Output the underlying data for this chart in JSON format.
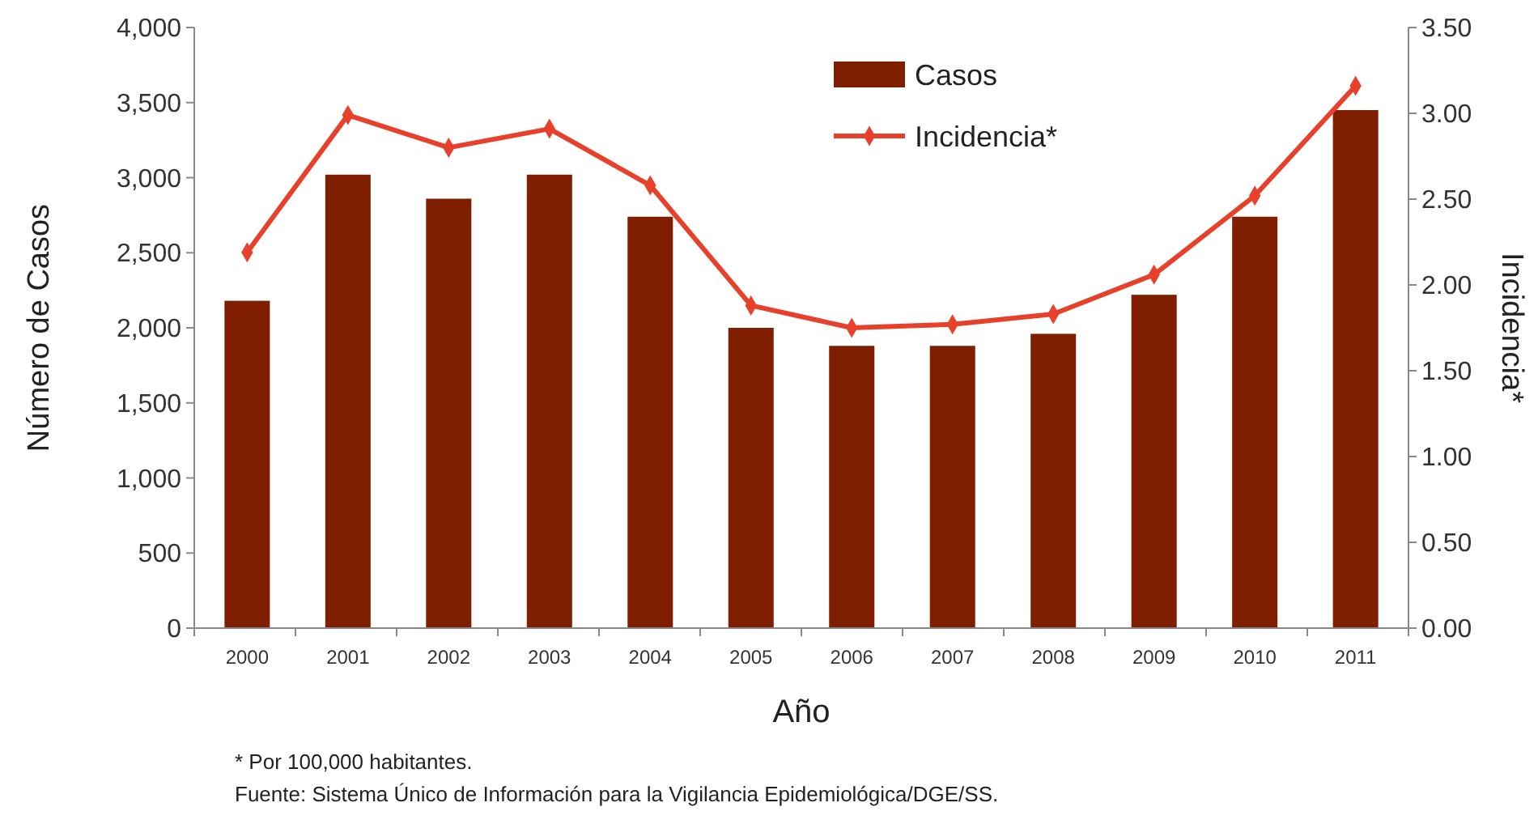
{
  "chart_data": {
    "type": "bar",
    "xlabel": "Año",
    "ylabel": "Número de Casos",
    "y2label": "Incidencia*",
    "categories": [
      "2000",
      "2001",
      "2002",
      "2003",
      "2004",
      "2005",
      "2006",
      "2007",
      "2008",
      "2009",
      "2010",
      "2011"
    ],
    "series": [
      {
        "name": "Casos",
        "type": "bar",
        "color": "#7f1f00",
        "values": [
          2180,
          3020,
          2860,
          3020,
          2740,
          2000,
          1880,
          1880,
          1960,
          2220,
          2740,
          3450
        ]
      },
      {
        "name": "Incidencia*",
        "type": "line",
        "axis": "y2",
        "color": "#e8412b",
        "marker": "diamond",
        "values": [
          2.19,
          2.99,
          2.8,
          2.91,
          2.58,
          1.88,
          1.75,
          1.77,
          1.83,
          2.06,
          2.52,
          3.16
        ]
      }
    ],
    "ylim": [
      0,
      4000
    ],
    "yticks": [
      {
        "value": 0,
        "label": "0"
      },
      {
        "value": 500,
        "label": "500"
      },
      {
        "value": 1000,
        "label": "1,000"
      },
      {
        "value": 1500,
        "label": "1,500"
      },
      {
        "value": 2000,
        "label": "2,000"
      },
      {
        "value": 2500,
        "label": "2,500"
      },
      {
        "value": 3000,
        "label": "3,000"
      },
      {
        "value": 3500,
        "label": "3,500"
      },
      {
        "value": 4000,
        "label": "4,000"
      }
    ],
    "y2lim": [
      0,
      3.5
    ],
    "y2ticks": [
      {
        "value": 0,
        "label": "0.00"
      },
      {
        "value": 0.5,
        "label": "0.50"
      },
      {
        "value": 1,
        "label": "1.00"
      },
      {
        "value": 1.5,
        "label": "1.50"
      },
      {
        "value": 2,
        "label": "2.00"
      },
      {
        "value": 2.5,
        "label": "2.50"
      },
      {
        "value": 3,
        "label": "3.00"
      },
      {
        "value": 3.5,
        "label": "3.50"
      }
    ],
    "legend": "top right",
    "grid": false,
    "annotations": [
      "* Por 100,000 habitantes.",
      "Fuente: Sistema Único de Información para la Vigilancia Epidemiológica/DGE/SS."
    ]
  }
}
